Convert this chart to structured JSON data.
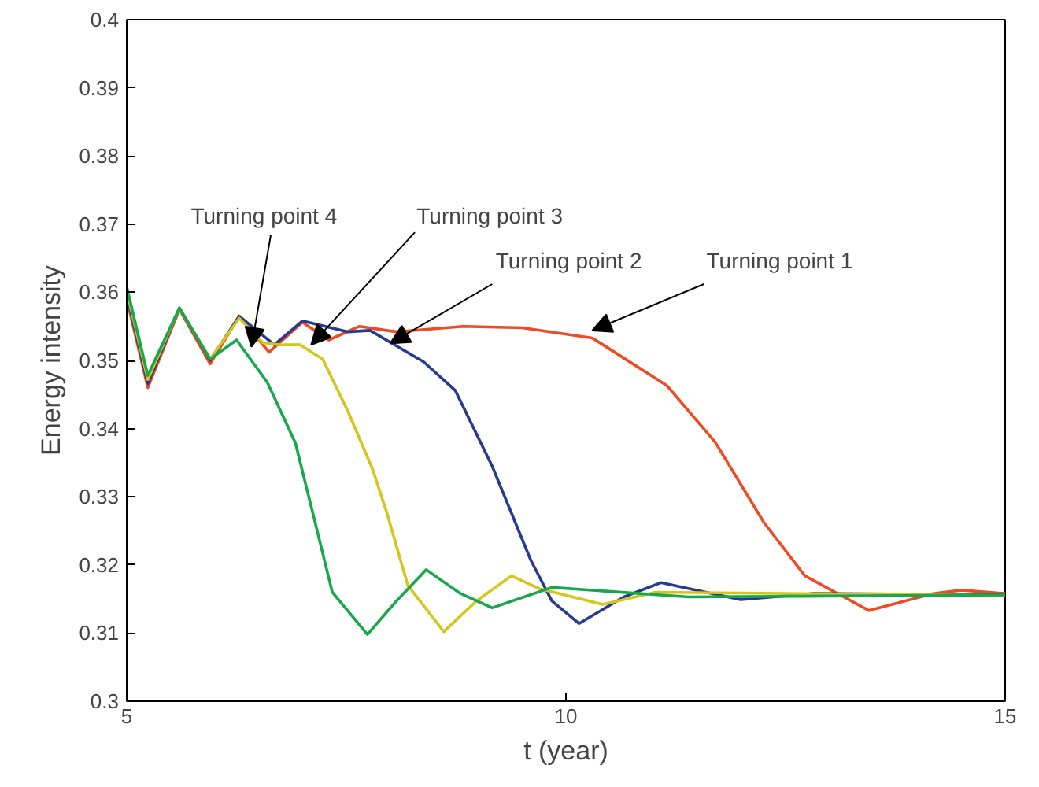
{
  "chart_data": {
    "type": "line",
    "xlabel": "t (year)",
    "ylabel": "Energy intensity",
    "xlim": [
      5,
      15
    ],
    "ylim": [
      0.3,
      0.4
    ],
    "xticks": [
      5,
      10,
      15
    ],
    "yticks": [
      0.3,
      0.31,
      0.32,
      0.33,
      0.34,
      0.35,
      0.36,
      0.37,
      0.38,
      0.39,
      0.4
    ],
    "grid": false,
    "marker": "none",
    "line_style": "solid",
    "series": [
      {
        "color": "#f04a23",
        "x": [
          5,
          5.24,
          5.6,
          5.95,
          6.28,
          6.62,
          7.0,
          7.3,
          7.65,
          8.07,
          8.83,
          9.5,
          10.3,
          11.15,
          11.7,
          12.25,
          12.72,
          13.45,
          14.18,
          14.5,
          15
        ],
        "values": [
          0.359,
          0.346,
          0.3575,
          0.3495,
          0.3565,
          0.3512,
          0.3556,
          0.353,
          0.355,
          0.3542,
          0.355,
          0.3548,
          0.3533,
          0.3463,
          0.338,
          0.3263,
          0.3184,
          0.3133,
          0.3158,
          0.3163,
          0.3158
        ]
      },
      {
        "color": "#263a92",
        "x": [
          5,
          5.24,
          5.6,
          5.95,
          6.28,
          6.68,
          7.0,
          7.52,
          7.77,
          8.38,
          8.74,
          9.16,
          9.6,
          9.84,
          10.15,
          10.66,
          11.08,
          11.99,
          12.8,
          15
        ],
        "values": [
          0.3596,
          0.3466,
          0.3577,
          0.35,
          0.3565,
          0.3523,
          0.3558,
          0.3542,
          0.3544,
          0.3498,
          0.3456,
          0.3345,
          0.3207,
          0.3147,
          0.3114,
          0.3153,
          0.3174,
          0.3149,
          0.3158,
          0.3156
        ]
      },
      {
        "color": "#d4c61a",
        "x": [
          5,
          5.24,
          5.6,
          5.95,
          6.28,
          6.55,
          6.73,
          6.97,
          7.23,
          7.52,
          7.8,
          7.96,
          8.2,
          8.61,
          8.98,
          9.38,
          9.7,
          10.42,
          11.02,
          15
        ],
        "values": [
          0.3602,
          0.3472,
          0.3577,
          0.3502,
          0.3562,
          0.3526,
          0.3523,
          0.3523,
          0.3502,
          0.3425,
          0.334,
          0.3277,
          0.317,
          0.3102,
          0.3147,
          0.3184,
          0.3165,
          0.3142,
          0.316,
          0.3155
        ]
      },
      {
        "color": "#17a84b",
        "x": [
          5,
          5.24,
          5.6,
          5.95,
          6.25,
          6.6,
          6.92,
          7.13,
          7.34,
          7.74,
          8.07,
          8.41,
          8.8,
          9.16,
          9.84,
          11.4,
          15
        ],
        "values": [
          0.3608,
          0.3478,
          0.3577,
          0.3502,
          0.353,
          0.3468,
          0.3379,
          0.327,
          0.316,
          0.3098,
          0.3147,
          0.3193,
          0.3158,
          0.3137,
          0.3167,
          0.3153,
          0.3156
        ]
      }
    ],
    "annotations": [
      {
        "text": "Turning point 1",
        "x": 10.3,
        "y": 0.3544
      },
      {
        "text": "Turning point 2",
        "x": 8.0,
        "y": 0.3525
      },
      {
        "text": "Turning point 3",
        "x": 7.1,
        "y": 0.3523
      },
      {
        "text": "Turning point 4",
        "x": 6.42,
        "y": 0.352
      }
    ]
  }
}
